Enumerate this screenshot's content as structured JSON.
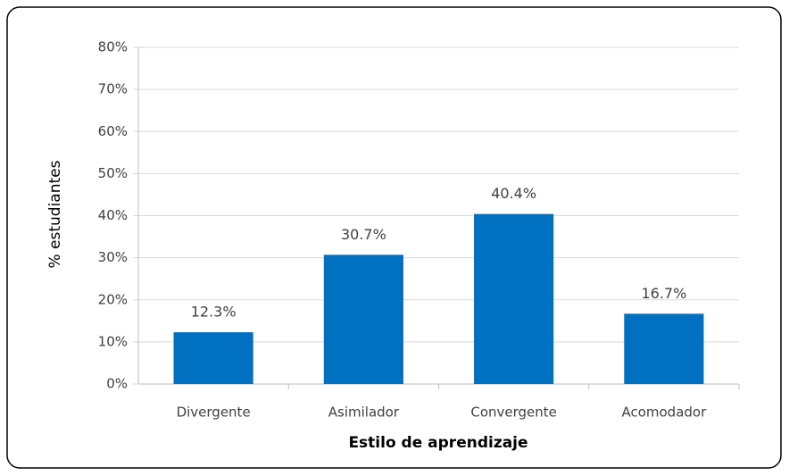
{
  "chart_data": {
    "type": "bar",
    "x_label": "Estilo de aprendizaje",
    "y_label": "% estudiantes",
    "categories": [
      "Divergente",
      "Asimilador",
      "Convergente",
      "Acomodador"
    ],
    "values": [
      12.3,
      30.7,
      40.4,
      16.7
    ],
    "value_labels": [
      "12.3%",
      "30.7%",
      "40.4%",
      "16.7%"
    ],
    "color": "#0070c0",
    "ylim": [
      0,
      80
    ],
    "yticks": [
      {
        "value": 0,
        "label": "0%"
      },
      {
        "value": 10,
        "label": "10%"
      },
      {
        "value": 20,
        "label": "20%"
      },
      {
        "value": 30,
        "label": "30%"
      },
      {
        "value": 40,
        "label": "40%"
      },
      {
        "value": 50,
        "label": "50%"
      },
      {
        "value": 60,
        "label": "60%"
      },
      {
        "value": 70,
        "label": "70%"
      },
      {
        "value": 80,
        "label": "80%"
      }
    ],
    "grid": true
  }
}
